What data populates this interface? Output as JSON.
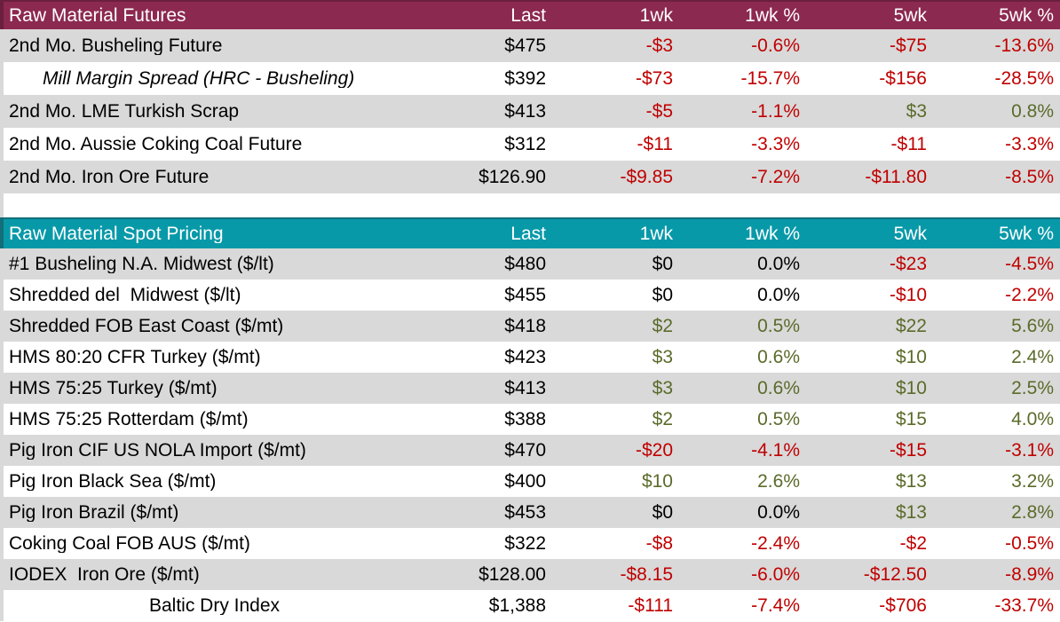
{
  "accent_colors": {
    "futures_header_bg": "#8C2950",
    "futures_header_border": "#6B1F3E",
    "spot_header_bg": "#0899A9",
    "spot_header_border": "#136E7A",
    "row_stripe": "#D9D9D9",
    "negative": "#C00000",
    "positive": "#5A6B2A",
    "neutral": "#000000"
  },
  "chart_data": [
    {
      "type": "table",
      "title": "Raw Material Futures",
      "columns": [
        "Last",
        "1wk",
        "1wk %",
        "5wk",
        "5wk %"
      ],
      "rows": [
        {
          "label": "2nd Mo. Busheling Future",
          "values": [
            "$475",
            "-$3",
            "-0.6%",
            "-$75",
            "-13.6%"
          ],
          "tones": [
            "neutral",
            "neg",
            "neg",
            "neg",
            "neg"
          ]
        },
        {
          "label": "Mill Margin Spread (HRC - Busheling)",
          "italic": true,
          "indent": true,
          "values": [
            "$392",
            "-$73",
            "-15.7%",
            "-$156",
            "-28.5%"
          ],
          "tones": [
            "neutral",
            "neg",
            "neg",
            "neg",
            "neg"
          ]
        },
        {
          "label": "2nd Mo. LME Turkish Scrap",
          "values": [
            "$413",
            "-$5",
            "-1.1%",
            "$3",
            "0.8%"
          ],
          "tones": [
            "neutral",
            "neg",
            "neg",
            "pos",
            "pos"
          ]
        },
        {
          "label": "2nd Mo. Aussie Coking Coal Future",
          "values": [
            "$312",
            "-$11",
            "-3.3%",
            "-$11",
            "-3.3%"
          ],
          "tones": [
            "neutral",
            "neg",
            "neg",
            "neg",
            "neg"
          ]
        },
        {
          "label": "2nd Mo. Iron Ore Future",
          "values": [
            "$126.90",
            "-$9.85",
            "-7.2%",
            "-$11.80",
            "-8.5%"
          ],
          "tones": [
            "neutral",
            "neg",
            "neg",
            "neg",
            "neg"
          ]
        }
      ]
    },
    {
      "type": "table",
      "title": "Raw Material Spot Pricing",
      "columns": [
        "Last",
        "1wk",
        "1wk %",
        "5wk",
        "5wk %"
      ],
      "rows": [
        {
          "label": "#1 Busheling N.A. Midwest ($/lt)",
          "values": [
            "$480",
            "$0",
            "0.0%",
            "-$23",
            "-4.5%"
          ],
          "tones": [
            "neutral",
            "neutral",
            "neutral",
            "neg",
            "neg"
          ]
        },
        {
          "label": "Shredded del  Midwest ($/lt)",
          "values": [
            "$455",
            "$0",
            "0.0%",
            "-$10",
            "-2.2%"
          ],
          "tones": [
            "neutral",
            "neutral",
            "neutral",
            "neg",
            "neg"
          ]
        },
        {
          "label": "Shredded FOB East Coast ($/mt)",
          "values": [
            "$418",
            "$2",
            "0.5%",
            "$22",
            "5.6%"
          ],
          "tones": [
            "neutral",
            "pos",
            "pos",
            "pos",
            "pos"
          ]
        },
        {
          "label": "HMS 80:20 CFR Turkey ($/mt)",
          "values": [
            "$423",
            "$3",
            "0.6%",
            "$10",
            "2.4%"
          ],
          "tones": [
            "neutral",
            "pos",
            "pos",
            "pos",
            "pos"
          ]
        },
        {
          "label": "HMS 75:25 Turkey ($/mt)",
          "values": [
            "$413",
            "$3",
            "0.6%",
            "$10",
            "2.5%"
          ],
          "tones": [
            "neutral",
            "pos",
            "pos",
            "pos",
            "pos"
          ]
        },
        {
          "label": "HMS 75:25 Rotterdam ($/mt)",
          "values": [
            "$388",
            "$2",
            "0.5%",
            "$15",
            "4.0%"
          ],
          "tones": [
            "neutral",
            "pos",
            "pos",
            "pos",
            "pos"
          ]
        },
        {
          "label": "Pig Iron CIF US NOLA Import ($/mt)",
          "values": [
            "$470",
            "-$20",
            "-4.1%",
            "-$15",
            "-3.1%"
          ],
          "tones": [
            "neutral",
            "neg",
            "neg",
            "neg",
            "neg"
          ]
        },
        {
          "label": "Pig Iron Black Sea ($/mt)",
          "values": [
            "$400",
            "$10",
            "2.6%",
            "$13",
            "3.2%"
          ],
          "tones": [
            "neutral",
            "pos",
            "pos",
            "pos",
            "pos"
          ]
        },
        {
          "label": "Pig Iron Brazil ($/mt)",
          "values": [
            "$453",
            "$0",
            "0.0%",
            "$13",
            "2.8%"
          ],
          "tones": [
            "neutral",
            "neutral",
            "neutral",
            "pos",
            "pos"
          ]
        },
        {
          "label": "Coking Coal FOB AUS ($/mt)",
          "values": [
            "$322",
            "-$8",
            "-2.4%",
            "-$2",
            "-0.5%"
          ],
          "tones": [
            "neutral",
            "neg",
            "neg",
            "neg",
            "neg"
          ]
        },
        {
          "label": "IODEX  Iron Ore ($/mt)",
          "values": [
            "$128.00",
            "-$8.15",
            "-6.0%",
            "-$12.50",
            "-8.9%"
          ],
          "tones": [
            "neutral",
            "neg",
            "neg",
            "neg",
            "neg"
          ]
        },
        {
          "label": "Baltic Dry Index",
          "center": true,
          "values": [
            "$1,388",
            "-$111",
            "-7.4%",
            "-$706",
            "-33.7%"
          ],
          "tones": [
            "neutral",
            "neg",
            "neg",
            "neg",
            "neg"
          ]
        }
      ]
    }
  ]
}
